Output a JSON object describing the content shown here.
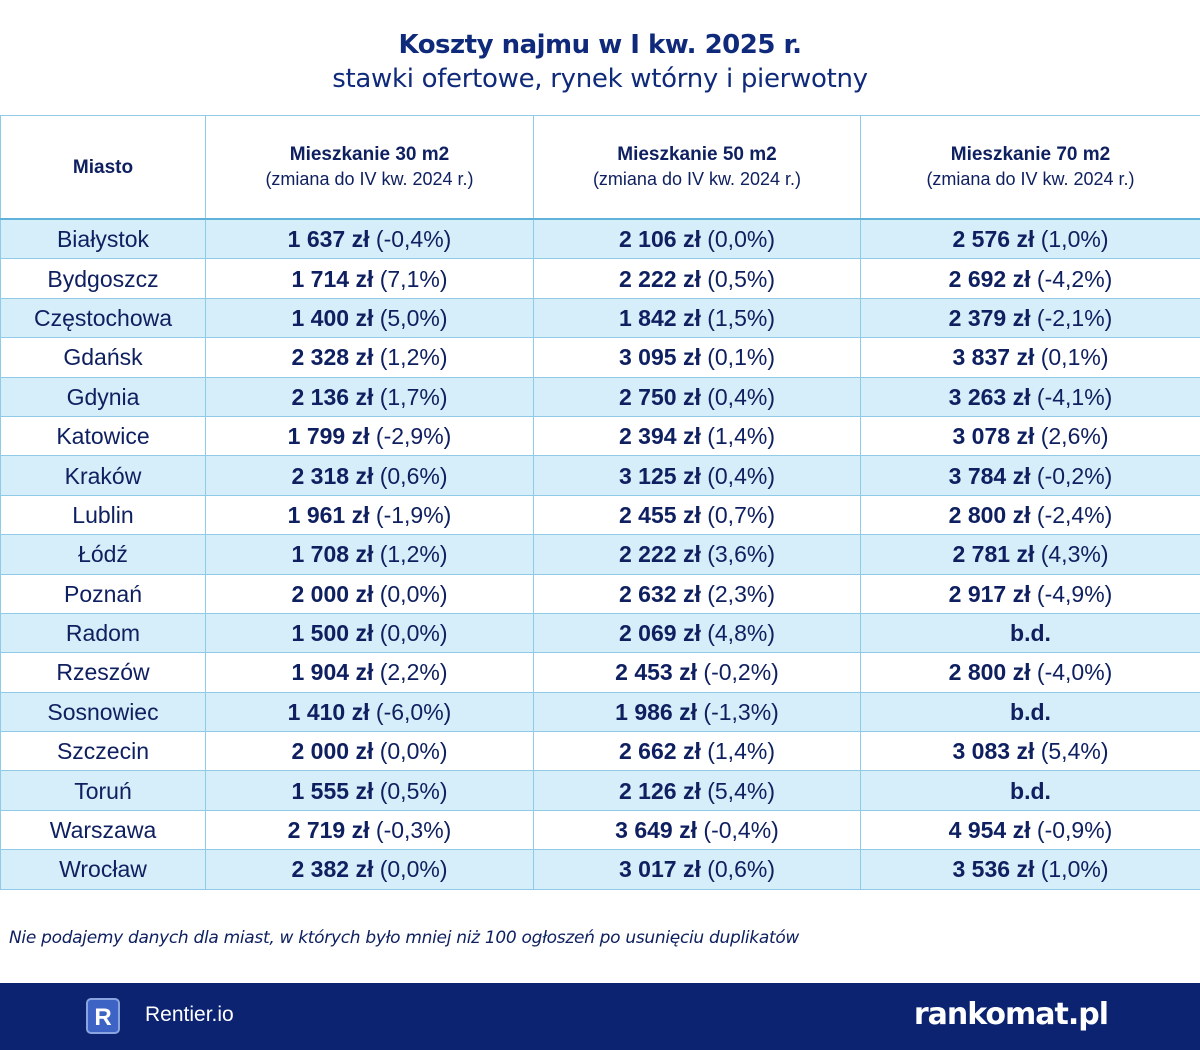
{
  "title": {
    "line1": "Koszty najmu w I kw. 2025 r.",
    "line2": "stawki ofertowe, rynek wtórny i pierwotny"
  },
  "table": {
    "headers": [
      {
        "title": "Miasto",
        "sub": ""
      },
      {
        "title": "Mieszkanie 30 m2",
        "sub": "(zmiana do IV kw. 2024 r.)"
      },
      {
        "title": "Mieszkanie 50 m2",
        "sub": "(zmiana do IV kw. 2024 r.)"
      },
      {
        "title": "Mieszkanie 70 m2",
        "sub": "(zmiana do IV kw. 2024 r.)"
      }
    ],
    "rows": [
      {
        "city": "Białystok",
        "c30": {
          "v": "1 637 zł",
          "ch": "(-0,4%)"
        },
        "c50": {
          "v": "2 106 zł",
          "ch": "(0,0%)"
        },
        "c70": {
          "v": "2 576 zł",
          "ch": "(1,0%)"
        }
      },
      {
        "city": "Bydgoszcz",
        "c30": {
          "v": "1 714 zł",
          "ch": "(7,1%)"
        },
        "c50": {
          "v": "2 222 zł",
          "ch": "(0,5%)"
        },
        "c70": {
          "v": "2 692 zł",
          "ch": "(-4,2%)"
        }
      },
      {
        "city": "Częstochowa",
        "c30": {
          "v": "1 400 zł",
          "ch": "(5,0%)"
        },
        "c50": {
          "v": "1 842 zł",
          "ch": "(1,5%)"
        },
        "c70": {
          "v": "2 379 zł",
          "ch": "(-2,1%)"
        }
      },
      {
        "city": "Gdańsk",
        "c30": {
          "v": "2 328 zł",
          "ch": "(1,2%)"
        },
        "c50": {
          "v": "3 095 zł",
          "ch": "(0,1%)"
        },
        "c70": {
          "v": "3 837 zł",
          "ch": "(0,1%)"
        }
      },
      {
        "city": "Gdynia",
        "c30": {
          "v": "2 136 zł",
          "ch": "(1,7%)"
        },
        "c50": {
          "v": "2 750 zł",
          "ch": "(0,4%)"
        },
        "c70": {
          "v": "3 263 zł",
          "ch": "(-4,1%)"
        }
      },
      {
        "city": "Katowice",
        "c30": {
          "v": "1 799 zł",
          "ch": "(-2,9%)"
        },
        "c50": {
          "v": "2 394 zł",
          "ch": "(1,4%)"
        },
        "c70": {
          "v": "3 078 zł",
          "ch": "(2,6%)"
        }
      },
      {
        "city": "Kraków",
        "c30": {
          "v": "2 318 zł",
          "ch": "(0,6%)"
        },
        "c50": {
          "v": "3 125 zł",
          "ch": "(0,4%)"
        },
        "c70": {
          "v": "3 784 zł",
          "ch": "(-0,2%)"
        }
      },
      {
        "city": "Lublin",
        "c30": {
          "v": "1 961 zł",
          "ch": "(-1,9%)"
        },
        "c50": {
          "v": "2 455 zł",
          "ch": "(0,7%)"
        },
        "c70": {
          "v": "2 800 zł",
          "ch": "(-2,4%)"
        }
      },
      {
        "city": "Łódź",
        "c30": {
          "v": "1 708 zł",
          "ch": "(1,2%)"
        },
        "c50": {
          "v": "2 222 zł",
          "ch": "(3,6%)"
        },
        "c70": {
          "v": "2 781 zł",
          "ch": "(4,3%)"
        }
      },
      {
        "city": "Poznań",
        "c30": {
          "v": "2 000 zł",
          "ch": "(0,0%)"
        },
        "c50": {
          "v": "2 632 zł",
          "ch": "(2,3%)"
        },
        "c70": {
          "v": "2 917 zł",
          "ch": "(-4,9%)"
        }
      },
      {
        "city": "Radom",
        "c30": {
          "v": "1 500 zł",
          "ch": "(0,0%)"
        },
        "c50": {
          "v": "2 069 zł",
          "ch": "(4,8%)"
        },
        "c70": {
          "v": "b.d.",
          "ch": ""
        }
      },
      {
        "city": "Rzeszów",
        "c30": {
          "v": "1 904 zł",
          "ch": "(2,2%)"
        },
        "c50": {
          "v": "2 453 zł",
          "ch": "(-0,2%)"
        },
        "c70": {
          "v": "2 800 zł",
          "ch": "(-4,0%)"
        }
      },
      {
        "city": "Sosnowiec",
        "c30": {
          "v": "1 410 zł",
          "ch": "(-6,0%)"
        },
        "c50": {
          "v": "1 986 zł",
          "ch": "(-1,3%)"
        },
        "c70": {
          "v": "b.d.",
          "ch": ""
        }
      },
      {
        "city": "Szczecin",
        "c30": {
          "v": "2 000 zł",
          "ch": "(0,0%)"
        },
        "c50": {
          "v": "2 662 zł",
          "ch": "(1,4%)"
        },
        "c70": {
          "v": "3 083 zł",
          "ch": "(5,4%)"
        }
      },
      {
        "city": "Toruń",
        "c30": {
          "v": "1 555 zł",
          "ch": "(0,5%)"
        },
        "c50": {
          "v": "2 126 zł",
          "ch": "(5,4%)"
        },
        "c70": {
          "v": "b.d.",
          "ch": ""
        }
      },
      {
        "city": "Warszawa",
        "c30": {
          "v": "2 719 zł",
          "ch": "(-0,3%)"
        },
        "c50": {
          "v": "3 649 zł",
          "ch": "(-0,4%)"
        },
        "c70": {
          "v": "4 954 zł",
          "ch": "(-0,9%)"
        }
      },
      {
        "city": "Wrocław",
        "c30": {
          "v": "2 382 zł",
          "ch": "(0,0%)"
        },
        "c50": {
          "v": "3 017 zł",
          "ch": "(0,6%)"
        },
        "c70": {
          "v": "3 536 zł",
          "ch": "(1,0%)"
        }
      }
    ]
  },
  "note": "Nie podajemy danych dla miast, w których było mniej niż 100 ogłoszeń po usunięciu duplikatów",
  "footer": {
    "rentier_logo_letter": "R",
    "rentier_name": "Rentier.io",
    "rankomat_logo": "rankomat.pl"
  },
  "colors": {
    "navy": "#0b2370",
    "stripe": "#d5eef9",
    "border": "#8fcbe6"
  }
}
